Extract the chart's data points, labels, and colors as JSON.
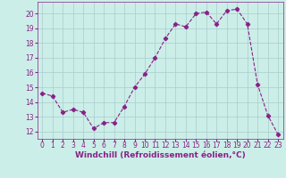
{
  "x": [
    0,
    1,
    2,
    3,
    4,
    5,
    6,
    7,
    8,
    9,
    10,
    11,
    12,
    13,
    14,
    15,
    16,
    17,
    18,
    19,
    20,
    21,
    22,
    23
  ],
  "y": [
    14.6,
    14.4,
    13.3,
    13.5,
    13.3,
    12.2,
    12.6,
    12.6,
    13.7,
    15.0,
    15.9,
    17.0,
    18.3,
    19.3,
    19.1,
    20.0,
    20.1,
    19.3,
    20.2,
    20.3,
    19.3,
    15.2,
    13.1,
    11.8
  ],
  "line_color": "#882288",
  "marker": "D",
  "marker_size": 2.2,
  "bg_color": "#cceee8",
  "grid_color": "#aacccc",
  "xlabel": "Windchill (Refroidissement éolien,°C)",
  "ylim": [
    11.5,
    20.8
  ],
  "xlim": [
    -0.5,
    23.5
  ],
  "yticks": [
    12,
    13,
    14,
    15,
    16,
    17,
    18,
    19,
    20
  ],
  "xticks": [
    0,
    1,
    2,
    3,
    4,
    5,
    6,
    7,
    8,
    9,
    10,
    11,
    12,
    13,
    14,
    15,
    16,
    17,
    18,
    19,
    20,
    21,
    22,
    23
  ],
  "tick_fontsize": 5.5,
  "xlabel_fontsize": 6.5
}
